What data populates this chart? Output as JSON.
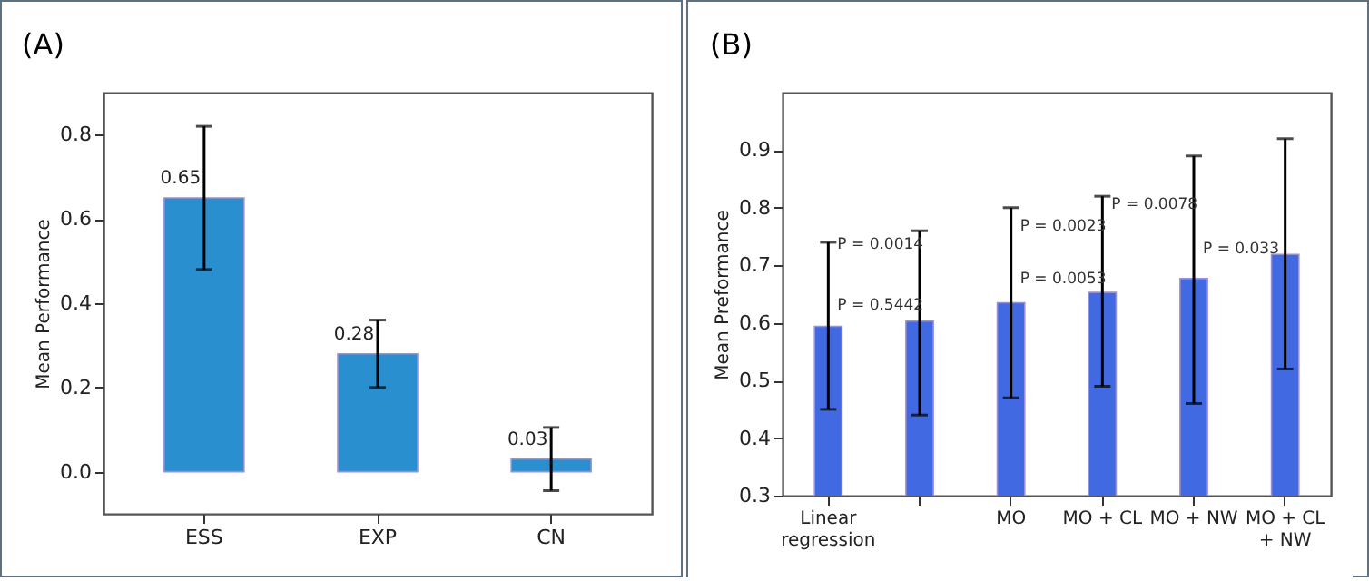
{
  "chart_data": [
    {
      "type": "bar",
      "title": "(A)",
      "ylabel": "Mean Performance",
      "categories": [
        "ESS",
        "EXP",
        "CN"
      ],
      "values": [
        0.65,
        0.28,
        0.03
      ],
      "errors": [
        0.17,
        0.08,
        0.075
      ],
      "color": "#2a8fcf",
      "data_labels": true,
      "ylim": [
        -0.1,
        0.9
      ],
      "yticks": [
        {
          "value": 0,
          "label": "0.0"
        },
        {
          "value": 0.2,
          "label": "0.2"
        },
        {
          "value": 0.4,
          "label": "0.4"
        },
        {
          "value": 0.6,
          "label": "0.6"
        },
        {
          "value": 0.8,
          "label": "0.8"
        }
      ],
      "grid": false
    },
    {
      "type": "bar",
      "title": "(B)",
      "ylabel": "Mean Preformance",
      "categories": [
        "Linear regression",
        null,
        "MO",
        "MO + CL",
        "MO + NW",
        "MO + CL + NW"
      ],
      "values": [
        0.594,
        0.603,
        0.635,
        0.653,
        0.677,
        0.719
      ],
      "errors": [
        [
          0.45,
          0.74
        ],
        [
          0.44,
          0.76
        ],
        [
          0.47,
          0.8
        ],
        [
          0.49,
          0.82
        ],
        [
          0.46,
          0.89
        ],
        [
          0.52,
          0.92
        ]
      ],
      "color": "#4169e1",
      "ylim": [
        0.3,
        1.0
      ],
      "yticks": [
        0.3,
        0.4,
        0.5,
        0.6,
        0.7,
        0.8,
        0.9
      ],
      "grid": false,
      "annotations": [
        {
          "text": "P = 0.5442",
          "x": "Linear regression",
          "y": 0.62
        },
        {
          "text": "P = 0.0014",
          "x": "Linear regression",
          "y": 0.725
        },
        {
          "text": "P = 0.0053",
          "x": "MO",
          "y": 0.665
        },
        {
          "text": "P = 0.0078",
          "x": "MO + CL",
          "y": 0.795
        },
        {
          "text": "P = 0.0023",
          "x": "MO",
          "y": 0.757
        },
        {
          "text": "P = 0.033",
          "x": "MO + NW",
          "y": 0.718
        }
      ]
    }
  ]
}
